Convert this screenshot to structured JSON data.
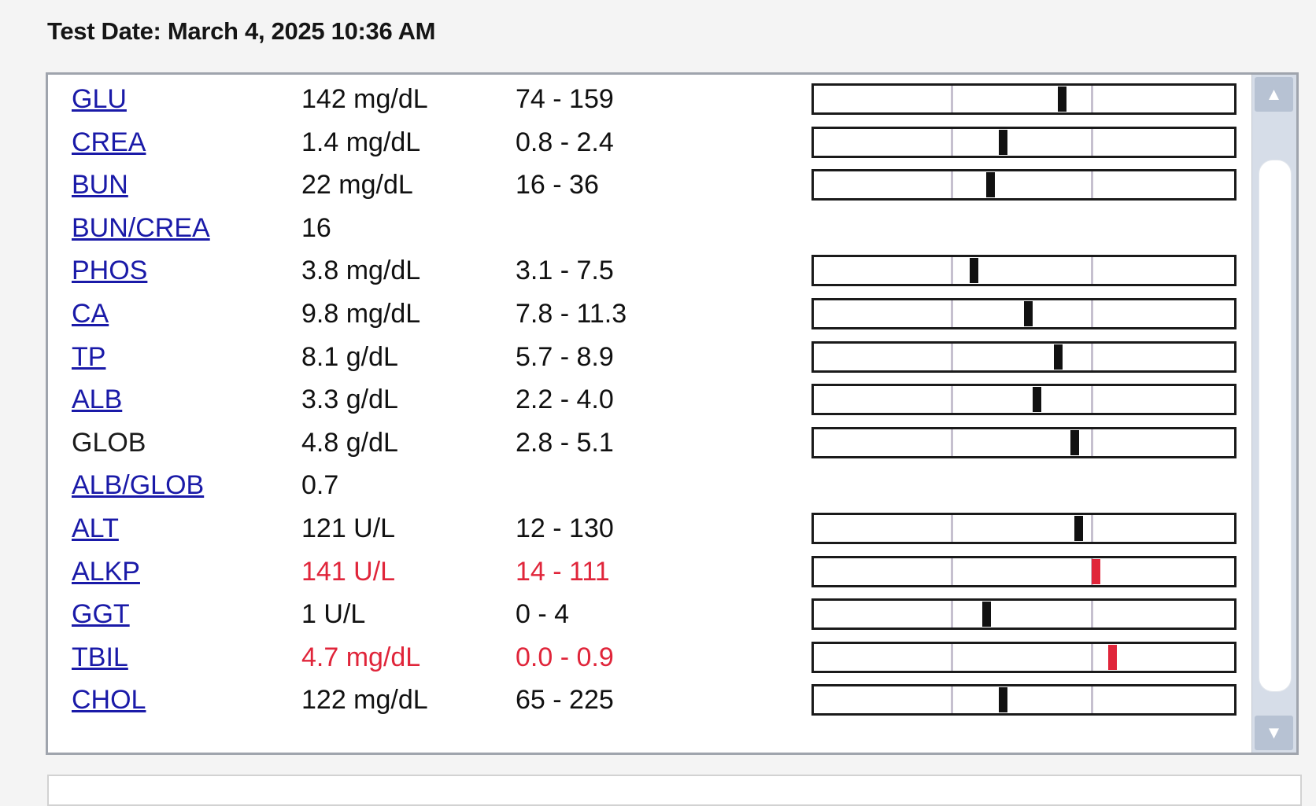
{
  "header": {
    "test_date": "Test Date: March 4, 2025 10:36 AM"
  },
  "results": [
    {
      "name": "GLU",
      "link": true,
      "result": "142 mg/dL",
      "range": "74 - 159",
      "abnormal": false,
      "gauge": 0.59
    },
    {
      "name": "CREA",
      "link": true,
      "result": "1.4 mg/dL",
      "range": "0.8 - 2.4",
      "abnormal": false,
      "gauge": 0.45
    },
    {
      "name": "BUN",
      "link": true,
      "result": "22 mg/dL",
      "range": "16 - 36",
      "abnormal": false,
      "gauge": 0.42
    },
    {
      "name": "BUN/CREA",
      "link": true,
      "result": "16",
      "range": "",
      "abnormal": false,
      "gauge": null
    },
    {
      "name": "PHOS",
      "link": true,
      "result": "3.8 mg/dL",
      "range": "3.1 - 7.5",
      "abnormal": false,
      "gauge": 0.38
    },
    {
      "name": "CA",
      "link": true,
      "result": "9.8 mg/dL",
      "range": "7.8 - 11.3",
      "abnormal": false,
      "gauge": 0.51
    },
    {
      "name": "TP",
      "link": true,
      "result": "8.1 g/dL",
      "range": "5.7 - 8.9",
      "abnormal": false,
      "gauge": 0.58
    },
    {
      "name": "ALB",
      "link": true,
      "result": "3.3 g/dL",
      "range": "2.2 - 4.0",
      "abnormal": false,
      "gauge": 0.53
    },
    {
      "name": "GLOB",
      "link": false,
      "result": "4.8 g/dL",
      "range": "2.8 - 5.1",
      "abnormal": false,
      "gauge": 0.62
    },
    {
      "name": "ALB/GLOB",
      "link": true,
      "result": "0.7",
      "range": "",
      "abnormal": false,
      "gauge": null
    },
    {
      "name": "ALT",
      "link": true,
      "result": "121 U/L",
      "range": "12 - 130",
      "abnormal": false,
      "gauge": 0.63
    },
    {
      "name": "ALKP",
      "link": true,
      "result": "141 U/L",
      "range": "14 - 111",
      "abnormal": true,
      "gauge": 0.67
    },
    {
      "name": "GGT",
      "link": true,
      "result": "1 U/L",
      "range": "0 - 4",
      "abnormal": false,
      "gauge": 0.41
    },
    {
      "name": "TBIL",
      "link": true,
      "result": "4.7 mg/dL",
      "range": "0.0 - 0.9",
      "abnormal": true,
      "gauge": 0.71
    },
    {
      "name": "CHOL",
      "link": true,
      "result": "122 mg/dL",
      "range": "65 - 225",
      "abnormal": false,
      "gauge": 0.45
    }
  ],
  "scrollbar": {
    "up_icon": "▲",
    "down_icon": "▼"
  },
  "colors": {
    "link": "#1a1aa8",
    "abnormal": "#e0253a",
    "marker": "#111111"
  }
}
